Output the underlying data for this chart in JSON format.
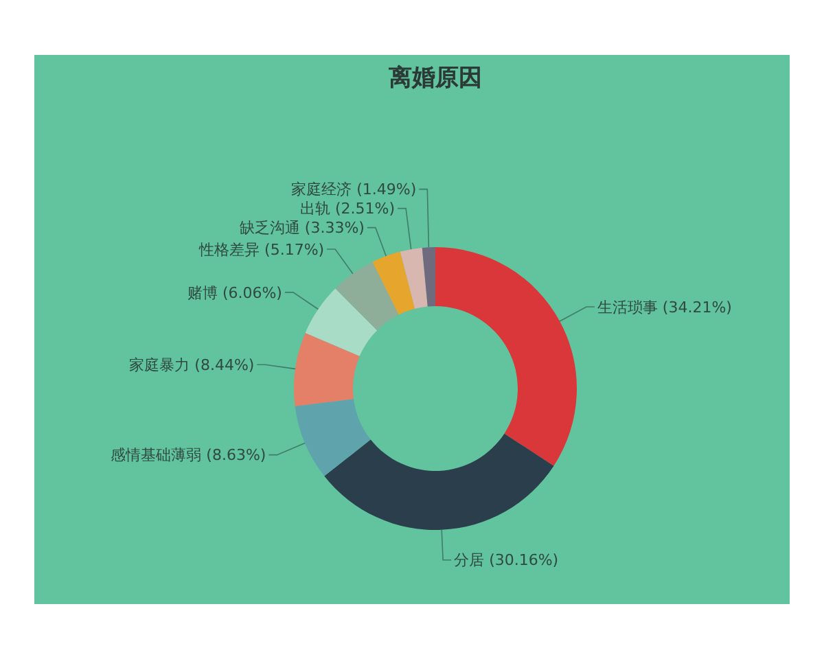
{
  "chart_data": {
    "type": "donut",
    "title": "离婚原因",
    "categories": [
      "生活琐事",
      "分居",
      "感情基础薄弱",
      "家庭暴力",
      "赌博",
      "性格差异",
      "缺乏沟通",
      "出轨",
      "家庭经济"
    ],
    "values": [
      34.21,
      30.16,
      8.63,
      8.44,
      6.06,
      5.17,
      3.33,
      2.51,
      1.49
    ],
    "value_labels": [
      "(34.21%)",
      "(30.16%)",
      "(8.63%)",
      "(8.44%)",
      "(6.06%)",
      "(5.17%)",
      "(3.33%)",
      "(2.51%)",
      "(1.49%)"
    ],
    "colors": [
      "#d9373a",
      "#2b3e4c",
      "#5fa4ac",
      "#e47f68",
      "#a9dcc7",
      "#8fae9a",
      "#e6a52d",
      "#d7b7b0",
      "#6f6a7d"
    ]
  }
}
